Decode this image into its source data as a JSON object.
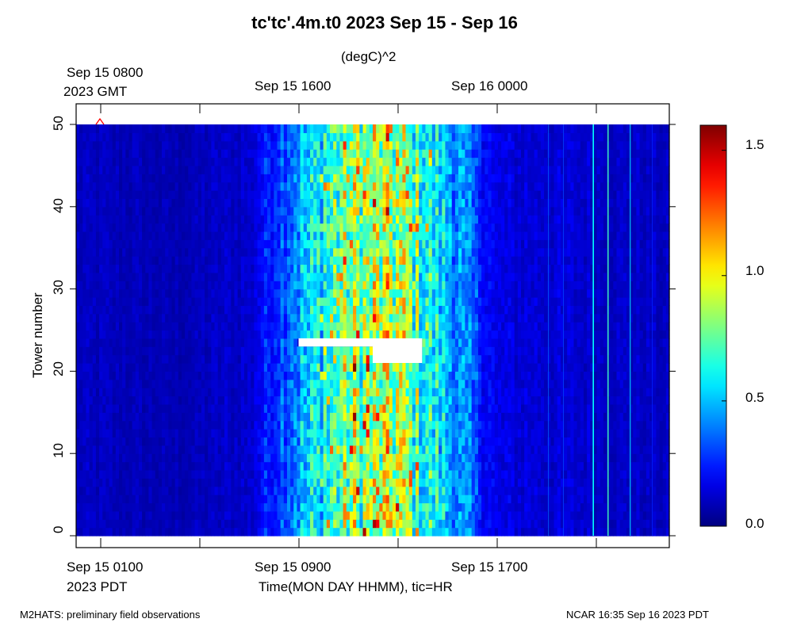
{
  "chart_data": {
    "type": "heatmap",
    "title": "tc'tc'.4m.t0 2023 Sep 15 - Sep 16",
    "colorbar_label": "(degC)^2",
    "ylabel": "Tower number",
    "xlabel": "Time(MON DAY HHMM), tic=HR",
    "y_ticks": [
      "0",
      "10",
      "20",
      "30",
      "40",
      "50"
    ],
    "ylim": [
      0,
      50
    ],
    "top_axis_labels": [
      {
        "line1": "Sep 15 0800",
        "line2": "2023 GMT"
      },
      {
        "line1": "Sep 15 1600",
        "line2": ""
      },
      {
        "line1": "Sep 16 0000",
        "line2": ""
      }
    ],
    "bottom_axis_labels": [
      {
        "line1": "Sep 15 0100",
        "line2": "2023 PDT"
      },
      {
        "line1": "Sep 15 0900",
        "line2": ""
      },
      {
        "line1": "Sep 15 1700",
        "line2": ""
      }
    ],
    "x_hours_range": [
      0,
      24
    ],
    "x_start_pdt": "Sep 15 0000 2023 PDT",
    "colorbar_ticks": [
      "0.0",
      "0.5",
      "1.0",
      "1.5"
    ],
    "colorbar_range": [
      0.0,
      1.6
    ],
    "colormap": "jet",
    "missing_data_color": "#ffffff",
    "missing_regions": [
      {
        "hours": [
          9.0,
          12.0
        ],
        "towers": [
          23,
          24
        ]
      },
      {
        "hours": [
          12.0,
          14.0
        ],
        "towers": [
          21,
          24
        ]
      }
    ],
    "approx_profile_hourly": [
      {
        "hour": 0,
        "value": 0.1
      },
      {
        "hour": 4,
        "value": 0.08
      },
      {
        "hour": 7,
        "value": 0.12
      },
      {
        "hour": 9,
        "value": 0.45
      },
      {
        "hour": 11,
        "value": 0.8
      },
      {
        "hour": 13,
        "value": 0.85
      },
      {
        "hour": 15,
        "value": 0.5
      },
      {
        "hour": 17,
        "value": 0.15
      },
      {
        "hour": 24,
        "value": 0.1
      }
    ],
    "marker_color": "#ff0000"
  },
  "footer": {
    "left": "M2HATS: preliminary field observations",
    "right": "NCAR 16:35 Sep 16 2023 PDT"
  }
}
